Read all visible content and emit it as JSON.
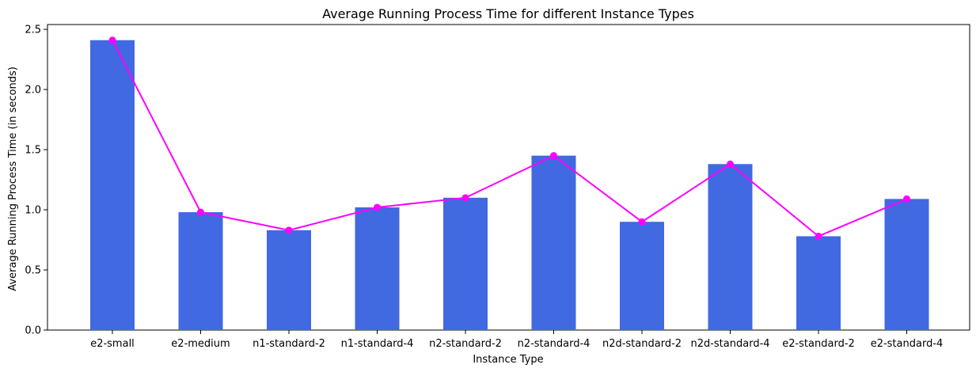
{
  "chart_data": {
    "type": "bar",
    "title": "Average Running Process Time for different Instance Types",
    "xlabel": "Instance Type",
    "ylabel": "Average Running Process Time (in seconds)",
    "categories": [
      "e2-small",
      "e2-medium",
      "n1-standard-2",
      "n1-standard-4",
      "n2-standard-2",
      "n2-standard-4",
      "n2d-standard-2",
      "n2d-standard-4",
      "e2-standard-2",
      "e2-standard-4"
    ],
    "values": [
      2.41,
      0.98,
      0.83,
      1.02,
      1.1,
      1.45,
      0.9,
      1.38,
      0.78,
      1.09
    ],
    "overlay_line": {
      "type": "line",
      "marker": "circle",
      "values": [
        2.41,
        0.98,
        0.83,
        1.02,
        1.1,
        1.45,
        0.9,
        1.38,
        0.78,
        1.09
      ]
    },
    "ylim": [
      0,
      2.54
    ],
    "yticks": [
      0.0,
      0.5,
      1.0,
      1.5,
      2.0,
      2.5
    ],
    "ytick_labels": [
      "0.0",
      "0.5",
      "1.0",
      "1.5",
      "2.0",
      "2.5"
    ],
    "grid": false,
    "colors": {
      "bar": "#4169e1",
      "line": "#ff00ff",
      "axes": "#000000"
    }
  }
}
